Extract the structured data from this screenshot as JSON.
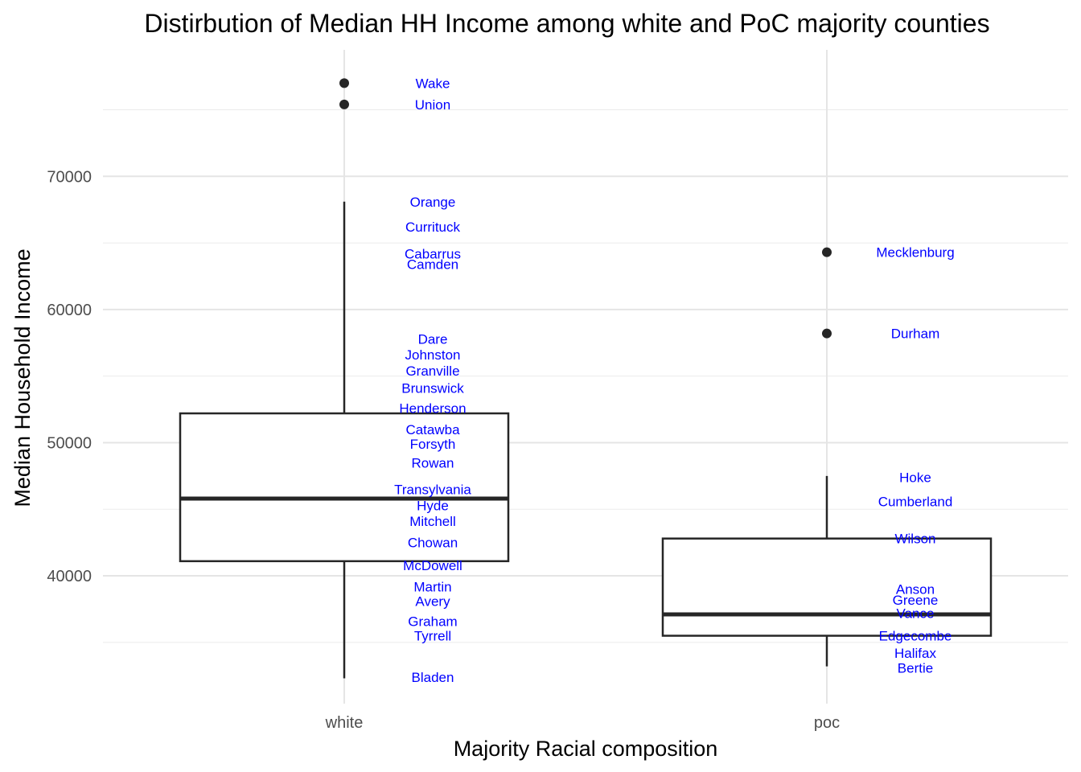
{
  "chart_data": {
    "type": "boxplot",
    "title": "Distirbution of Median HH Income among white and PoC majority counties",
    "xlabel": "Majority Racial composition",
    "ylabel": "Median Household Income",
    "ylim": [
      30400,
      79500
    ],
    "yticks": [
      40000,
      50000,
      60000,
      70000
    ],
    "grid": true,
    "categories": [
      "white",
      "poc"
    ],
    "label_color": "#0000ff",
    "box_color": "#262626",
    "boxes": [
      {
        "category": "white",
        "q1": 41100,
        "median": 45800,
        "q3": 52200,
        "whisker_low": 32300,
        "whisker_high": 68100,
        "outliers": [
          77000,
          75400
        ]
      },
      {
        "category": "poc",
        "q1": 35500,
        "median": 37100,
        "q3": 42800,
        "whisker_low": 33200,
        "whisker_high": 47500,
        "outliers": [
          64300,
          58200
        ]
      }
    ],
    "labels": [
      {
        "category": "white",
        "text": "Wake",
        "y": 77000
      },
      {
        "category": "white",
        "text": "Union",
        "y": 75400
      },
      {
        "category": "white",
        "text": "Orange",
        "y": 68100
      },
      {
        "category": "white",
        "text": "Currituck",
        "y": 66200
      },
      {
        "category": "white",
        "text": "Cabarrus",
        "y": 64200
      },
      {
        "category": "white",
        "text": "Camden",
        "y": 63400
      },
      {
        "category": "white",
        "text": "Dare",
        "y": 57800
      },
      {
        "category": "white",
        "text": "Johnston",
        "y": 56600
      },
      {
        "category": "white",
        "text": "Granville",
        "y": 55400
      },
      {
        "category": "white",
        "text": "Brunswick",
        "y": 54100
      },
      {
        "category": "white",
        "text": "Henderson",
        "y": 52600
      },
      {
        "category": "white",
        "text": "Catawba",
        "y": 51000
      },
      {
        "category": "white",
        "text": "Forsyth",
        "y": 49900
      },
      {
        "category": "white",
        "text": "Rowan",
        "y": 48500
      },
      {
        "category": "white",
        "text": "Transylvania",
        "y": 46500
      },
      {
        "category": "white",
        "text": "Hyde",
        "y": 45300
      },
      {
        "category": "white",
        "text": "Mitchell",
        "y": 44100
      },
      {
        "category": "white",
        "text": "Chowan",
        "y": 42500
      },
      {
        "category": "white",
        "text": "McDowell",
        "y": 40800
      },
      {
        "category": "white",
        "text": "Martin",
        "y": 39200
      },
      {
        "category": "white",
        "text": "Avery",
        "y": 38100
      },
      {
        "category": "white",
        "text": "Graham",
        "y": 36600
      },
      {
        "category": "white",
        "text": "Tyrrell",
        "y": 35500
      },
      {
        "category": "white",
        "text": "Bladen",
        "y": 32400
      },
      {
        "category": "poc",
        "text": "Mecklenburg",
        "y": 64300
      },
      {
        "category": "poc",
        "text": "Durham",
        "y": 58200
      },
      {
        "category": "poc",
        "text": "Hoke",
        "y": 47400
      },
      {
        "category": "poc",
        "text": "Cumberland",
        "y": 45600
      },
      {
        "category": "poc",
        "text": "Wilson",
        "y": 42800
      },
      {
        "category": "poc",
        "text": "Anson",
        "y": 39000
      },
      {
        "category": "poc",
        "text": "Greene",
        "y": 38200
      },
      {
        "category": "poc",
        "text": "Vance",
        "y": 37200
      },
      {
        "category": "poc",
        "text": "Edgecombe",
        "y": 35500
      },
      {
        "category": "poc",
        "text": "Halifax",
        "y": 34200
      },
      {
        "category": "poc",
        "text": "Bertie",
        "y": 33100
      }
    ]
  }
}
